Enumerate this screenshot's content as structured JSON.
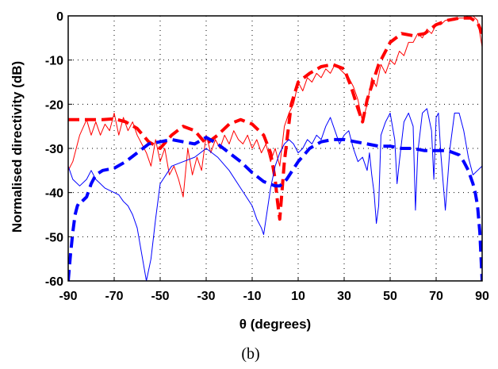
{
  "caption": "(b)",
  "chart_data": {
    "type": "line",
    "title": "",
    "xlabel": "θ (degrees)",
    "ylabel": "Normalised directivity (dB)",
    "xlim": [
      -90,
      90
    ],
    "ylim": [
      -60,
      0
    ],
    "xticks": [
      -90,
      -70,
      -50,
      -30,
      -10,
      10,
      30,
      50,
      70,
      90
    ],
    "yticks": [
      0,
      -10,
      -20,
      -30,
      -40,
      -50,
      -60
    ],
    "grid": true,
    "legend": "none",
    "colors": {
      "red": "#ff0000",
      "blue": "#0000ff"
    },
    "series": [
      {
        "color": "#ff0000",
        "style": "dashed",
        "width": 4,
        "x": [
          -90,
          -80,
          -75,
          -70,
          -65,
          -60,
          -55,
          -50,
          -45,
          -40,
          -35,
          -30,
          -25,
          -20,
          -15,
          -10,
          -5,
          -2,
          0,
          1,
          2,
          4,
          7,
          10,
          15,
          20,
          25,
          30,
          33,
          36,
          38,
          40,
          45,
          50,
          55,
          60,
          65,
          70,
          75,
          80,
          85,
          88,
          90
        ],
        "y": [
          -23.5,
          -23.5,
          -23.5,
          -23.3,
          -24,
          -25.5,
          -28.5,
          -30,
          -27,
          -25,
          -26,
          -29,
          -27,
          -24.5,
          -23.5,
          -24.5,
          -27,
          -31,
          -37,
          -42,
          -46,
          -33,
          -20,
          -15,
          -13,
          -11.5,
          -11,
          -12,
          -16,
          -21,
          -24,
          -19,
          -11,
          -6,
          -4,
          -4.5,
          -4,
          -2,
          -1,
          -0.5,
          -0.5,
          -1.5,
          -4
        ]
      },
      {
        "color": "#ff0000",
        "style": "solid",
        "width": 1,
        "x": [
          -90,
          -88,
          -85,
          -82,
          -80,
          -78,
          -76,
          -74,
          -72,
          -70,
          -68,
          -66,
          -64,
          -62,
          -60,
          -58,
          -56,
          -54,
          -52,
          -50,
          -48,
          -46,
          -44,
          -42,
          -40,
          -38,
          -36,
          -34,
          -32,
          -30,
          -28,
          -26,
          -24,
          -22,
          -20,
          -18,
          -16,
          -14,
          -12,
          -10,
          -8,
          -6,
          -4,
          -2,
          0,
          2,
          4,
          6,
          8,
          10,
          12,
          14,
          16,
          18,
          20,
          22,
          24,
          26,
          28,
          30,
          32,
          34,
          36,
          38,
          40,
          42,
          44,
          46,
          48,
          50,
          52,
          54,
          56,
          58,
          60,
          62,
          64,
          66,
          68,
          70,
          72,
          74,
          76,
          78,
          80,
          82,
          84,
          86,
          88,
          90
        ],
        "y": [
          -35,
          -33,
          -27,
          -23.5,
          -27,
          -24,
          -27,
          -24.5,
          -26,
          -22,
          -27,
          -23,
          -26,
          -24,
          -27,
          -29,
          -31,
          -34,
          -28,
          -33,
          -30,
          -36,
          -34,
          -37,
          -41,
          -30,
          -36,
          -32,
          -35,
          -27,
          -31,
          -28,
          -30,
          -27,
          -29,
          -26,
          -28,
          -29,
          -27,
          -30,
          -28,
          -31,
          -29,
          -33,
          -30,
          -34,
          -25,
          -22,
          -20,
          -15,
          -17,
          -14,
          -15,
          -13,
          -14,
          -12,
          -13,
          -11,
          -12,
          -13,
          -14,
          -16,
          -19,
          -24,
          -20,
          -14,
          -16,
          -11,
          -13,
          -10,
          -11,
          -8,
          -9,
          -6,
          -6,
          -4,
          -5,
          -3,
          -4,
          -2,
          -2,
          -1,
          -1,
          -1,
          -0.5,
          -0.5,
          0,
          0,
          -1,
          -7
        ]
      },
      {
        "color": "#0000ff",
        "style": "dashed",
        "width": 4,
        "x": [
          -90,
          -89,
          -88,
          -87,
          -86,
          -85,
          -84,
          -83,
          -82,
          -80,
          -78,
          -75,
          -70,
          -65,
          -60,
          -55,
          -50,
          -45,
          -40,
          -35,
          -30,
          -25,
          -20,
          -15,
          -10,
          -5,
          0,
          2,
          5,
          10,
          15,
          20,
          25,
          30,
          35,
          40,
          45,
          50,
          55,
          60,
          65,
          70,
          75,
          80,
          82,
          84,
          85,
          86,
          87,
          88,
          89,
          90
        ],
        "y": [
          -60,
          -54,
          -49,
          -45,
          -43,
          -42,
          -42,
          -41.5,
          -41,
          -38,
          -36,
          -35,
          -34.5,
          -33,
          -31,
          -29,
          -28.5,
          -28,
          -28.5,
          -29,
          -27.5,
          -29,
          -31,
          -33,
          -35.5,
          -37.5,
          -38.5,
          -38.5,
          -37,
          -33,
          -30,
          -28.5,
          -28,
          -28,
          -28.5,
          -29,
          -29.5,
          -29.5,
          -30,
          -30,
          -30.5,
          -30.5,
          -30.5,
          -31.5,
          -33,
          -35,
          -36.5,
          -38,
          -40,
          -43,
          -49,
          -60
        ]
      },
      {
        "color": "#0000ff",
        "style": "solid",
        "width": 1,
        "x": [
          -90,
          -88,
          -85,
          -82,
          -80,
          -78,
          -76,
          -74,
          -72,
          -70,
          -68,
          -66,
          -64,
          -62,
          -60,
          -58,
          -56,
          -54,
          -52,
          -50,
          -45,
          -40,
          -35,
          -30,
          -25,
          -20,
          -15,
          -10,
          -8,
          -6,
          -5,
          -4,
          -2,
          0,
          2,
          4,
          6,
          8,
          10,
          12,
          14,
          16,
          18,
          20,
          22,
          24,
          26,
          28,
          30,
          32,
          34,
          36,
          38,
          40,
          41,
          42,
          43,
          44,
          45,
          46,
          48,
          50,
          52,
          53,
          54,
          56,
          58,
          60,
          61,
          62,
          64,
          66,
          68,
          69,
          70,
          71,
          72,
          74,
          76,
          78,
          80,
          82,
          84,
          86,
          88,
          90
        ],
        "y": [
          -34,
          -37,
          -38.5,
          -37,
          -35,
          -37,
          -38,
          -39,
          -39.5,
          -40,
          -40.5,
          -42,
          -43,
          -45,
          -48,
          -54,
          -60,
          -55,
          -46,
          -38,
          -34,
          -33,
          -32,
          -30,
          -32,
          -35,
          -39,
          -43,
          -46,
          -48,
          -49.5,
          -46,
          -39,
          -34,
          -31,
          -29,
          -28,
          -29,
          -31,
          -30,
          -28,
          -29,
          -27,
          -28,
          -25,
          -23,
          -26,
          -29,
          -27,
          -26,
          -30,
          -33,
          -32,
          -35,
          -31,
          -36,
          -40,
          -47,
          -43,
          -27,
          -24,
          -22,
          -28,
          -38,
          -33,
          -24,
          -22,
          -25,
          -44,
          -31,
          -22,
          -21,
          -26,
          -37,
          -23,
          -22,
          -31,
          -44,
          -30,
          -22,
          -22,
          -26,
          -32,
          -36,
          -35,
          -34
        ]
      }
    ]
  }
}
